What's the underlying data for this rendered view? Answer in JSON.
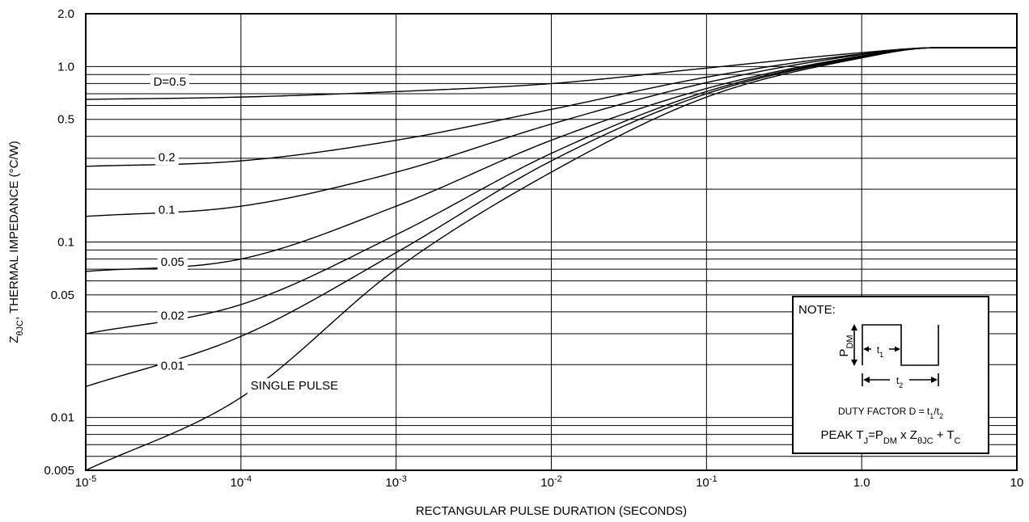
{
  "chart_data": {
    "type": "line",
    "x_scale": "log",
    "y_scale": "log",
    "xlim": [
      1e-05,
      10
    ],
    "ylim": [
      0.005,
      2.0
    ],
    "xlabel": "RECTANGULAR PULSE DURATION (SECONDS)",
    "ylabel": {
      "main": "Z",
      "sub": "θJC",
      "rest": ", THERMAL IMPEDANCE (°C/W)"
    },
    "x_ticks": [
      {
        "value": 1e-05,
        "base": "10",
        "exp": "-5"
      },
      {
        "value": 0.0001,
        "base": "10",
        "exp": "-4"
      },
      {
        "value": 0.001,
        "base": "10",
        "exp": "-3"
      },
      {
        "value": 0.01,
        "base": "10",
        "exp": "-2"
      },
      {
        "value": 0.1,
        "base": "10",
        "exp": "-1"
      },
      {
        "value": 1,
        "base": "1.0",
        "exp": ""
      },
      {
        "value": 10,
        "base": "10",
        "exp": ""
      }
    ],
    "y_ticks": [
      {
        "value": 2.0,
        "label": "2.0"
      },
      {
        "value": 1.0,
        "label": "1.0"
      },
      {
        "value": 0.5,
        "label": "0.5"
      },
      {
        "value": 0.1,
        "label": "0.1"
      },
      {
        "value": 0.05,
        "label": "0.05"
      },
      {
        "value": 0.01,
        "label": "0.01"
      },
      {
        "value": 0.005,
        "label": "0.005"
      }
    ],
    "grid": true,
    "series": [
      {
        "name": "D=0.5",
        "x": [
          1e-05,
          0.0001,
          0.001,
          0.01,
          0.1,
          1,
          3,
          10
        ],
        "y": [
          0.65,
          0.67,
          0.72,
          0.8,
          0.98,
          1.2,
          1.28,
          1.28
        ]
      },
      {
        "name": "0.2",
        "x": [
          1e-05,
          0.0001,
          0.001,
          0.01,
          0.1,
          1,
          3,
          10
        ],
        "y": [
          0.27,
          0.29,
          0.38,
          0.57,
          0.87,
          1.18,
          1.28,
          1.28
        ]
      },
      {
        "name": "0.1",
        "x": [
          1e-05,
          0.0001,
          0.001,
          0.01,
          0.1,
          1,
          3,
          10
        ],
        "y": [
          0.14,
          0.16,
          0.25,
          0.47,
          0.81,
          1.17,
          1.28,
          1.28
        ]
      },
      {
        "name": "0.05",
        "x": [
          1e-05,
          0.0001,
          0.001,
          0.01,
          0.1,
          1,
          3,
          10
        ],
        "y": [
          0.068,
          0.08,
          0.16,
          0.38,
          0.75,
          1.15,
          1.28,
          1.28
        ]
      },
      {
        "name": "0.02",
        "x": [
          1e-05,
          0.0001,
          0.001,
          0.01,
          0.1,
          1,
          3,
          10
        ],
        "y": [
          0.03,
          0.044,
          0.11,
          0.32,
          0.72,
          1.14,
          1.28,
          1.28
        ]
      },
      {
        "name": "0.01",
        "x": [
          1e-05,
          0.0001,
          0.001,
          0.01,
          0.1,
          1,
          3,
          10
        ],
        "y": [
          0.015,
          0.029,
          0.087,
          0.29,
          0.7,
          1.13,
          1.28,
          1.28
        ]
      },
      {
        "name": "SINGLE PULSE",
        "x": [
          1e-05,
          0.0001,
          0.001,
          0.01,
          0.1,
          1,
          3,
          10
        ],
        "y": [
          0.005,
          0.013,
          0.07,
          0.25,
          0.67,
          1.12,
          1.28,
          1.28
        ]
      }
    ],
    "curve_labels": [
      {
        "text": "D=0.5",
        "at_x": 2.6e-05,
        "at_y": 0.82
      },
      {
        "text": "0.2",
        "at_x": 2.8e-05,
        "at_y": 0.305
      },
      {
        "text": "0.1",
        "at_x": 2.8e-05,
        "at_y": 0.153
      },
      {
        "text": "0.05",
        "at_x": 2.9e-05,
        "at_y": 0.077
      },
      {
        "text": "0.02",
        "at_x": 2.9e-05,
        "at_y": 0.038
      },
      {
        "text": "0.01",
        "at_x": 2.9e-05,
        "at_y": 0.0197
      },
      {
        "text": "SINGLE PULSE",
        "at_x": 0.00011,
        "at_y": 0.0152
      }
    ],
    "note": {
      "title": "NOTE:",
      "pdm": {
        "main": "P",
        "sub": "DM"
      },
      "t1": {
        "main": "t",
        "sub": "1"
      },
      "t2": {
        "main": "t",
        "sub": "2"
      },
      "duty_factor": {
        "prefix": "DUTY FACTOR D = t",
        "s1": "1",
        "mid": "/t",
        "s2": "2"
      },
      "peak": {
        "p1": "PEAK T",
        "s1": "J",
        "p2": "=P",
        "s2": "DM",
        "p3": " x Z",
        "s3": "θJC",
        "p4": " + T",
        "s4": "C"
      }
    }
  }
}
